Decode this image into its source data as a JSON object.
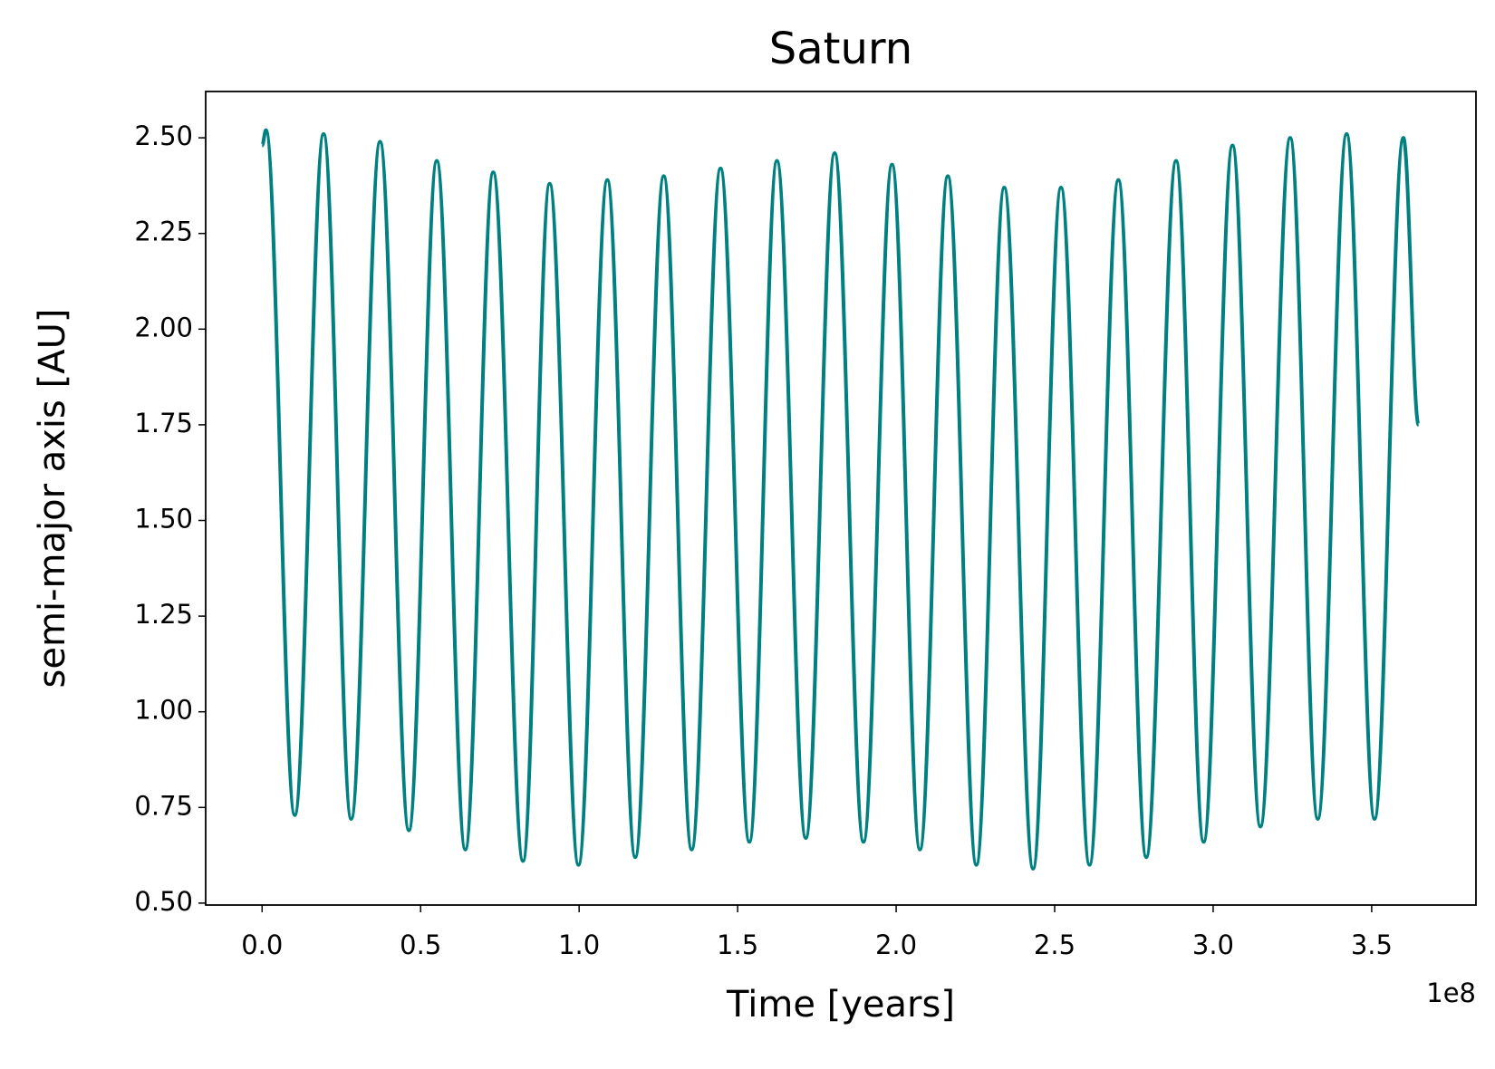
{
  "chart_data": {
    "type": "line",
    "title": "Saturn",
    "x_label": "Time [years]",
    "y_label": "semi-major axis [AU]",
    "x_offset_text": "1e8",
    "x": [
      0,
      1200000,
      10300000,
      19400000,
      28100000,
      37200000,
      46300000,
      55100000,
      64100000,
      72900000,
      82300000,
      90700000,
      99800000,
      108900000,
      117700000,
      126700000,
      135500000,
      144600000,
      153700000,
      162400000,
      171500000,
      180600000,
      189700000,
      198700000,
      207500000,
      216300000,
      225300000,
      234100000,
      243200000,
      252000000,
      261000000,
      270100000,
      278900000,
      288300000,
      297000000,
      306100000,
      314900000,
      324300000,
      333000000,
      342100000,
      350900000,
      360000000,
      364800000
    ],
    "series": [
      {
        "color": "#008080",
        "values": [
          2.48,
          2.52,
          0.73,
          2.51,
          0.72,
          2.49,
          0.69,
          2.44,
          0.64,
          2.41,
          0.61,
          2.38,
          0.6,
          2.39,
          0.62,
          2.4,
          0.64,
          2.42,
          0.66,
          2.44,
          0.67,
          2.46,
          0.66,
          2.43,
          0.64,
          2.4,
          0.6,
          2.37,
          0.59,
          2.37,
          0.6,
          2.39,
          0.62,
          2.44,
          0.66,
          2.48,
          0.7,
          2.5,
          0.72,
          2.51,
          0.72,
          2.5,
          1.75
        ]
      }
    ],
    "xlim": [
      -17800000,
      382900000
    ],
    "ylim": [
      0.495,
      2.621
    ],
    "xticks": [
      {
        "value": 0,
        "label": "0.0"
      },
      {
        "value": 50000000,
        "label": "0.5"
      },
      {
        "value": 100000000,
        "label": "1.0"
      },
      {
        "value": 150000000,
        "label": "1.5"
      },
      {
        "value": 200000000,
        "label": "2.0"
      },
      {
        "value": 250000000,
        "label": "2.5"
      },
      {
        "value": 300000000,
        "label": "3.0"
      },
      {
        "value": 350000000,
        "label": "3.5"
      }
    ],
    "yticks": [
      {
        "value": 0.5,
        "label": "0.50"
      },
      {
        "value": 0.75,
        "label": "0.75"
      },
      {
        "value": 1.0,
        "label": "1.00"
      },
      {
        "value": 1.25,
        "label": "1.25"
      },
      {
        "value": 1.5,
        "label": "1.50"
      },
      {
        "value": 1.75,
        "label": "1.75"
      },
      {
        "value": 2.0,
        "label": "2.00"
      },
      {
        "value": 2.25,
        "label": "2.25"
      },
      {
        "value": 2.5,
        "label": "2.50"
      }
    ],
    "grid": false
  }
}
